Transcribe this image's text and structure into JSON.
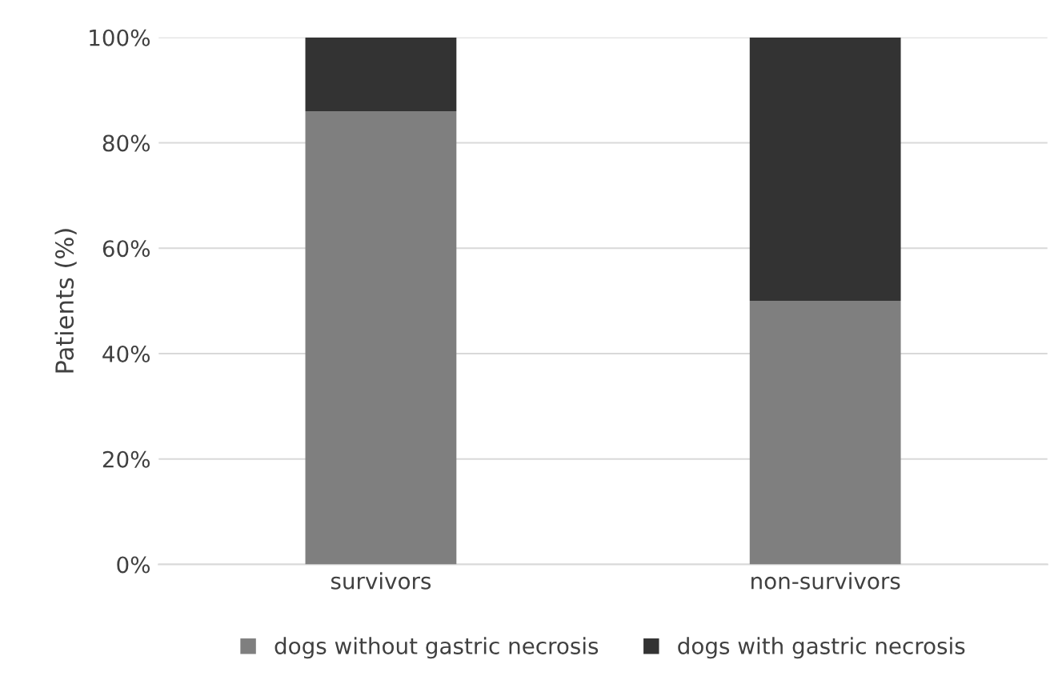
{
  "chart_data": {
    "type": "bar",
    "stacked": true,
    "ylabel": "Patients (%)",
    "categories": [
      "survivors",
      "non-survivors"
    ],
    "series": [
      {
        "name": "dogs without gastric necrosis",
        "color": "#7f7f7f",
        "values": [
          86,
          50
        ]
      },
      {
        "name": "dogs with gastric necrosis",
        "color": "#333333",
        "values": [
          14,
          50
        ]
      }
    ],
    "ylim": [
      0,
      100
    ],
    "yticks": [
      {
        "value": 0,
        "label": "0%"
      },
      {
        "value": 20,
        "label": "20%"
      },
      {
        "value": 40,
        "label": "40%"
      },
      {
        "value": 60,
        "label": "60%"
      },
      {
        "value": 80,
        "label": "80%"
      },
      {
        "value": 100,
        "label": "100%"
      }
    ],
    "grid": "y",
    "legend": "bottom"
  }
}
